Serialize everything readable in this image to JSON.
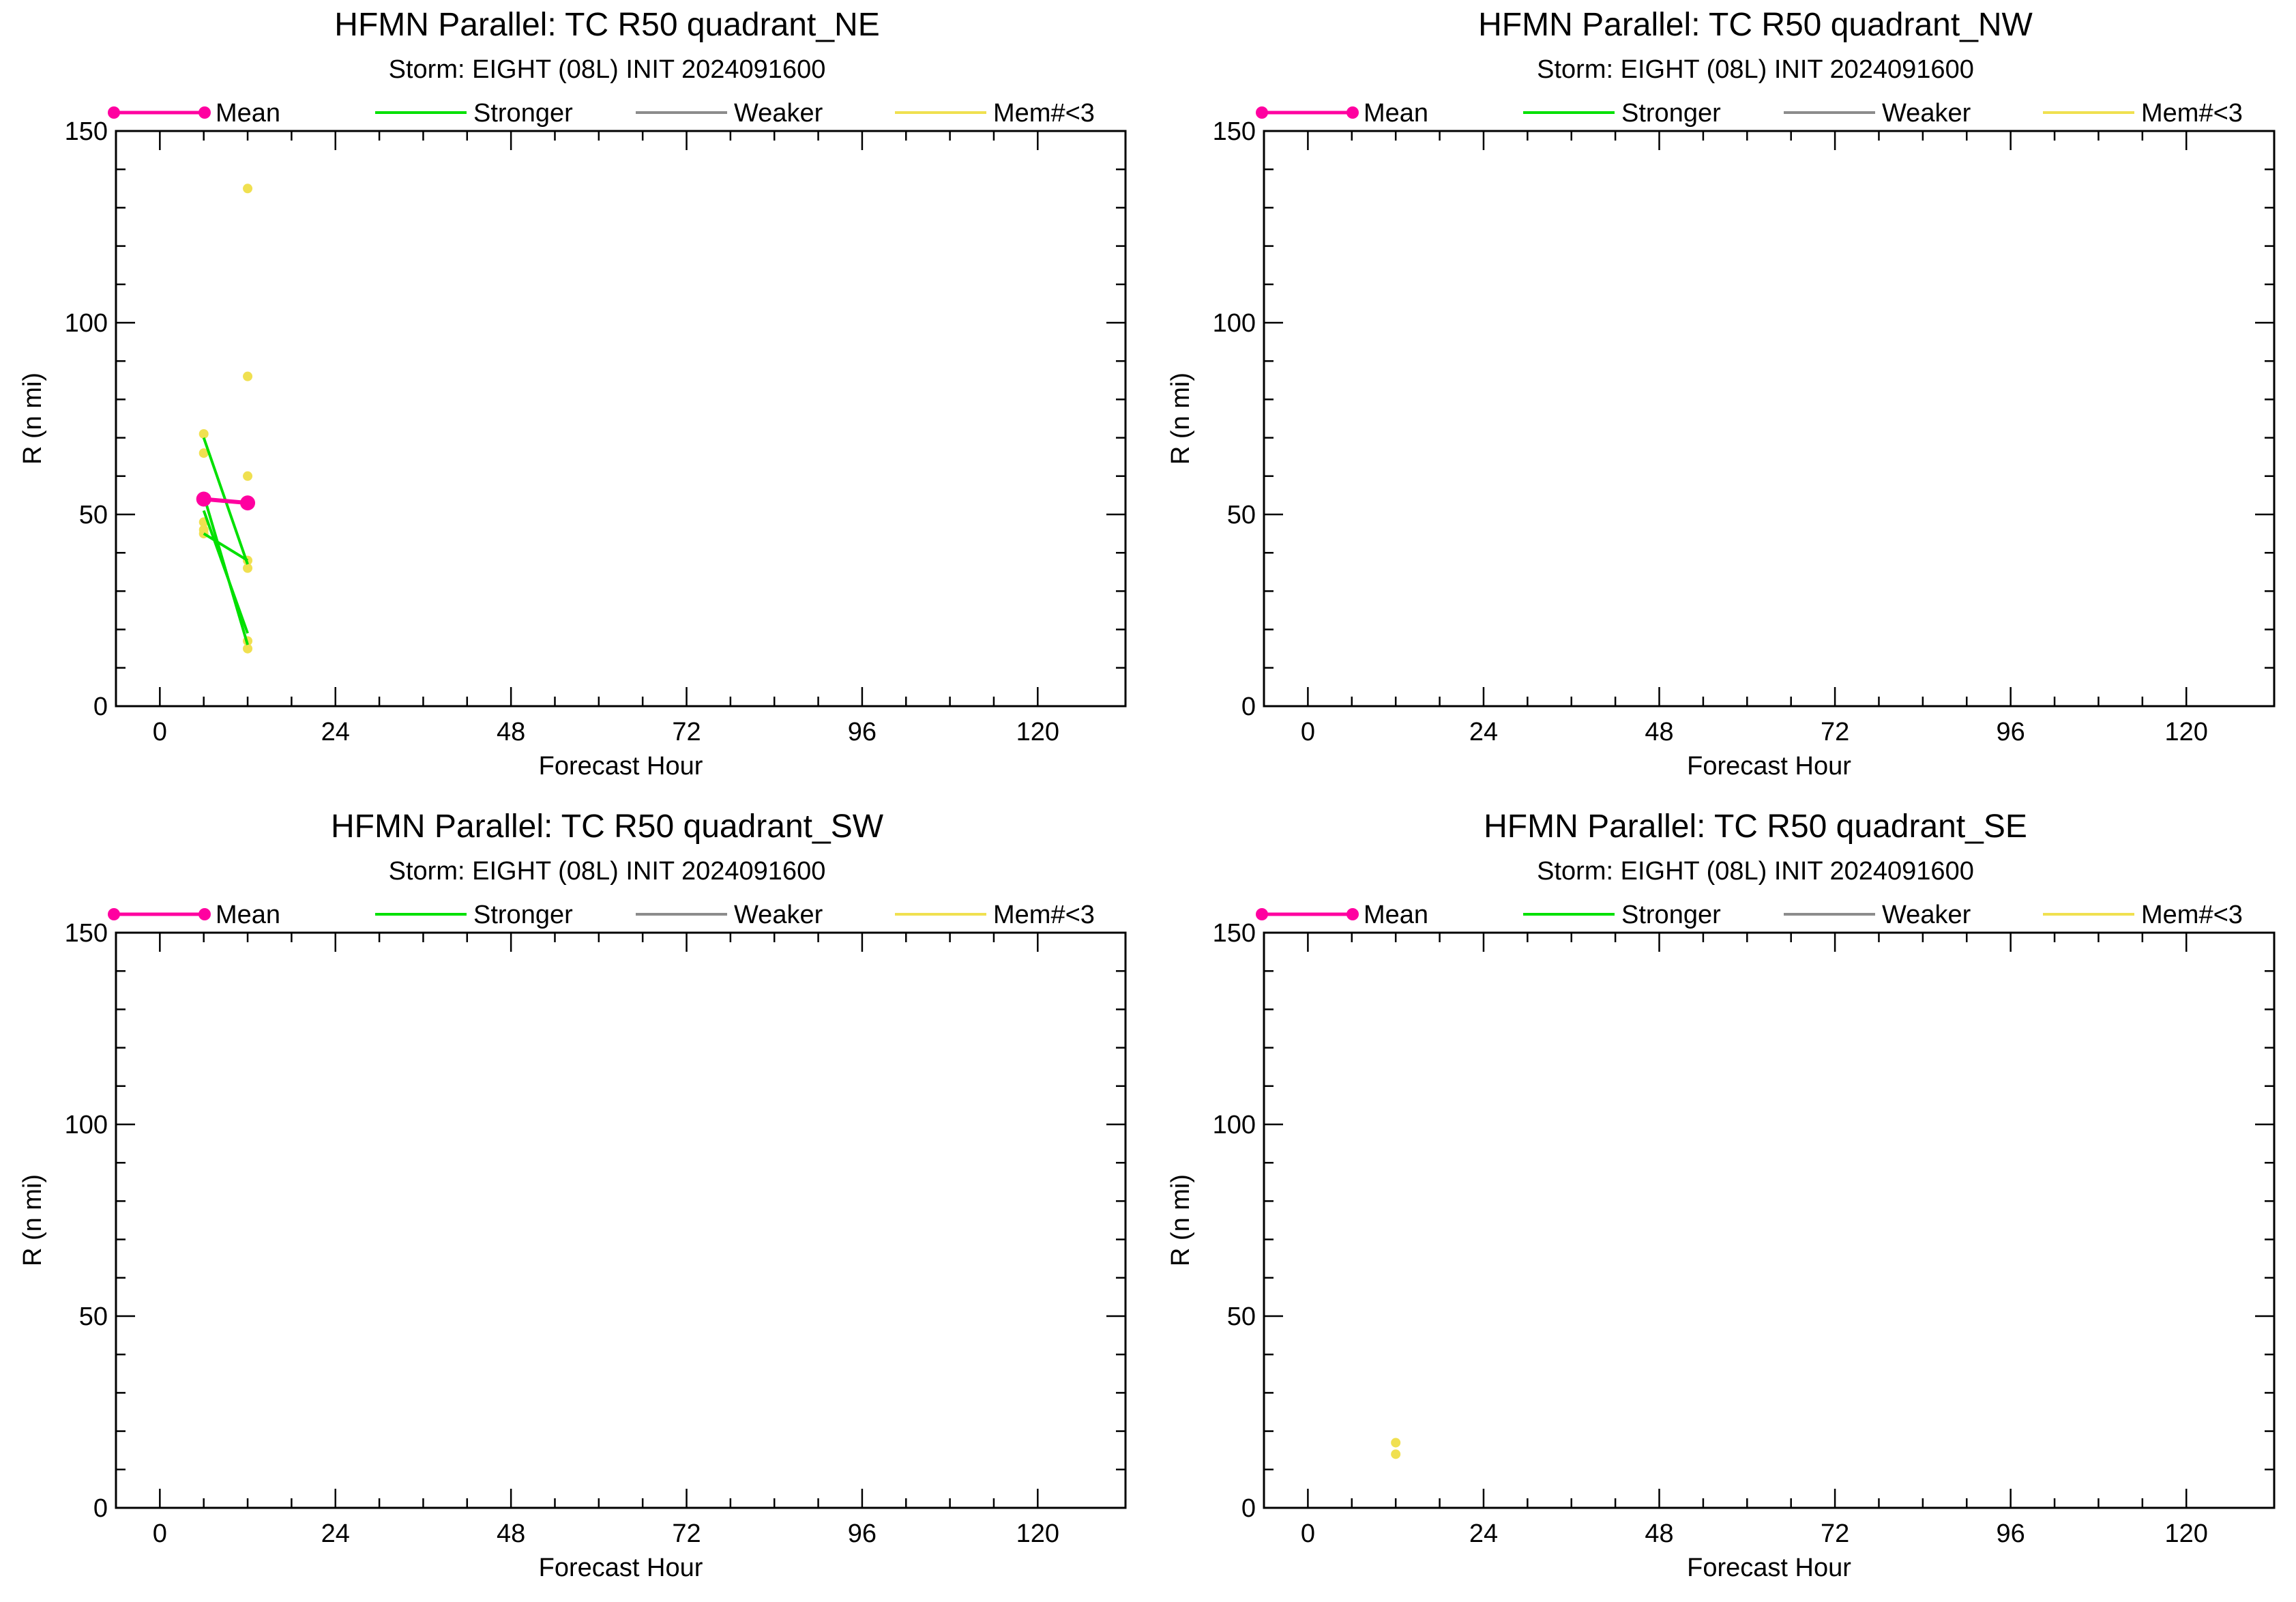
{
  "legend": {
    "mean": "Mean",
    "stronger": "Stronger",
    "weaker": "Weaker",
    "mem": "Mem#<3"
  },
  "colors": {
    "mean": "#ff00a0",
    "stronger": "#00e000",
    "weaker": "#8c8c8c",
    "mem": "#f0e050",
    "axis": "#000000"
  },
  "chart_data": [
    {
      "type": "scatter",
      "title": "HFMN Parallel: TC  R50 quadrant_NE",
      "subtitle": "Storm: EIGHT (08L) INIT 2024091600",
      "xlabel": "Forecast Hour",
      "ylabel": "R (n mi)",
      "xlim": [
        -6,
        132
      ],
      "ylim": [
        0,
        150
      ],
      "xticks": [
        0,
        24,
        48,
        72,
        96,
        120
      ],
      "yticks": [
        0,
        50,
        100,
        150
      ],
      "legend_position": "top",
      "series": [
        {
          "name": "Mean",
          "kind": "mean",
          "points": [
            [
              6,
              54
            ],
            [
              12,
              53
            ]
          ]
        },
        {
          "name": "Stronger",
          "kind": "stronger",
          "lines": [
            [
              [
                6,
                70
              ],
              [
                12,
                37
              ]
            ],
            [
              [
                6,
                55
              ],
              [
                12,
                16
              ]
            ],
            [
              [
                6,
                51
              ],
              [
                12,
                19
              ]
            ],
            [
              [
                6,
                45
              ],
              [
                12,
                38
              ]
            ]
          ]
        },
        {
          "name": "Mem#<3",
          "kind": "mem",
          "points": [
            [
              6,
              71
            ],
            [
              6,
              66
            ],
            [
              6,
              48
            ],
            [
              6,
              46
            ],
            [
              6,
              45
            ],
            [
              12,
              135
            ],
            [
              12,
              86
            ],
            [
              12,
              60
            ],
            [
              12,
              38
            ],
            [
              12,
              36
            ],
            [
              12,
              17
            ],
            [
              12,
              15
            ]
          ]
        }
      ]
    },
    {
      "type": "scatter",
      "title": "HFMN Parallel: TC  R50 quadrant_NW",
      "subtitle": "Storm: EIGHT (08L) INIT 2024091600",
      "xlabel": "Forecast Hour",
      "ylabel": "R (n mi)",
      "xlim": [
        -6,
        132
      ],
      "ylim": [
        0,
        150
      ],
      "xticks": [
        0,
        24,
        48,
        72,
        96,
        120
      ],
      "yticks": [
        0,
        50,
        100,
        150
      ],
      "legend_position": "top",
      "series": []
    },
    {
      "type": "scatter",
      "title": "HFMN Parallel: TC  R50 quadrant_SW",
      "subtitle": "Storm: EIGHT (08L) INIT 2024091600",
      "xlabel": "Forecast Hour",
      "ylabel": "R (n mi)",
      "xlim": [
        -6,
        132
      ],
      "ylim": [
        0,
        150
      ],
      "xticks": [
        0,
        24,
        48,
        72,
        96,
        120
      ],
      "yticks": [
        0,
        50,
        100,
        150
      ],
      "legend_position": "top",
      "series": []
    },
    {
      "type": "scatter",
      "title": "HFMN Parallel: TC  R50 quadrant_SE",
      "subtitle": "Storm: EIGHT (08L) INIT 2024091600",
      "xlabel": "Forecast Hour",
      "ylabel": "R (n mi)",
      "xlim": [
        -6,
        132
      ],
      "ylim": [
        0,
        150
      ],
      "xticks": [
        0,
        24,
        48,
        72,
        96,
        120
      ],
      "yticks": [
        0,
        50,
        100,
        150
      ],
      "legend_position": "top",
      "series": [
        {
          "name": "Mem#<3",
          "kind": "mem",
          "points": [
            [
              12,
              17
            ],
            [
              12,
              14
            ]
          ]
        }
      ]
    }
  ]
}
